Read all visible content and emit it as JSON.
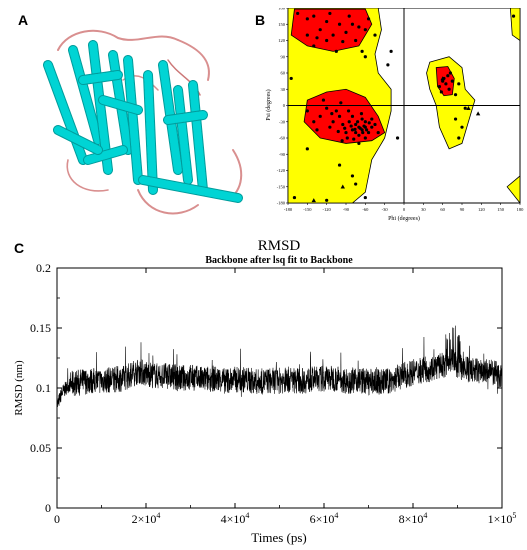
{
  "panels": {
    "a": {
      "letter": "A"
    },
    "b": {
      "letter": "B"
    },
    "c": {
      "letter": "C"
    }
  },
  "colors": {
    "helix": "#00d4d4",
    "helix_dark": "#009c9c",
    "loop": "#d98f8f",
    "favored": "#ff0000",
    "allowed": "#ffff00",
    "points": "#000000"
  },
  "chart_data": [
    {
      "type": "scatter",
      "title": "",
      "xlabel": "Phi (degrees)",
      "ylabel": "Psi (degrees)",
      "xlim": [
        -180,
        180
      ],
      "ylim": [
        -180,
        180
      ],
      "xticks": [
        -180,
        -150,
        -120,
        -90,
        -60,
        -30,
        0,
        30,
        60,
        90,
        120,
        150,
        180
      ],
      "yticks": [
        180,
        150,
        120,
        90,
        60,
        30,
        0,
        -30,
        -60,
        -90,
        -120,
        -150,
        -180
      ],
      "grid": false,
      "points": [
        [
          -140,
          165
        ],
        [
          -120,
          155
        ],
        [
          -100,
          150
        ],
        [
          -80,
          150
        ],
        [
          -70,
          145
        ],
        [
          -90,
          135
        ],
        [
          -110,
          130
        ],
        [
          -130,
          140
        ],
        [
          -150,
          160
        ],
        [
          -60,
          140
        ],
        [
          -75,
          120
        ],
        [
          -95,
          118
        ],
        [
          -120,
          120
        ],
        [
          -140,
          110
        ],
        [
          -65,
          100
        ],
        [
          -150,
          130
        ],
        [
          -105,
          100
        ],
        [
          -85,
          165
        ],
        [
          -55,
          160
        ],
        [
          -45,
          130
        ],
        [
          -115,
          170
        ],
        [
          -135,
          125
        ],
        [
          -70,
          -40
        ],
        [
          -65,
          -45
        ],
        [
          -60,
          -40
        ],
        [
          -75,
          -35
        ],
        [
          -80,
          -45
        ],
        [
          -60,
          -30
        ],
        [
          -55,
          -50
        ],
        [
          -70,
          -55
        ],
        [
          -65,
          -25
        ],
        [
          -85,
          -30
        ],
        [
          -90,
          -50
        ],
        [
          -50,
          -40
        ],
        [
          -75,
          -50
        ],
        [
          -62,
          -38
        ],
        [
          -68,
          -42
        ],
        [
          -72,
          -30
        ],
        [
          -58,
          -45
        ],
        [
          -80,
          -20
        ],
        [
          -95,
          -35
        ],
        [
          -100,
          -20
        ],
        [
          -110,
          -30
        ],
        [
          -105,
          -10
        ],
        [
          -120,
          -5
        ],
        [
          -115,
          -40
        ],
        [
          -130,
          -20
        ],
        [
          -60,
          -60
        ],
        [
          -50,
          -25
        ],
        [
          -45,
          -35
        ],
        [
          -88,
          -60
        ],
        [
          -78,
          -62
        ],
        [
          -66,
          -15
        ],
        [
          -40,
          -50
        ],
        [
          -135,
          -45
        ],
        [
          -125,
          10
        ],
        [
          -98,
          5
        ],
        [
          -70,
          -70
        ],
        [
          -54,
          -32
        ],
        [
          -64,
          -50
        ],
        [
          -76,
          -44
        ],
        [
          -82,
          -38
        ],
        [
          -92,
          -42
        ],
        [
          -102,
          -48
        ],
        [
          -112,
          -15
        ],
        [
          -140,
          -30
        ],
        [
          -150,
          -10
        ],
        [
          -86,
          -10
        ],
        [
          -96,
          -65
        ],
        [
          60,
          45
        ],
        [
          65,
          40
        ],
        [
          55,
          35
        ],
        [
          70,
          30
        ],
        [
          62,
          50
        ],
        [
          75,
          45
        ],
        [
          58,
          25
        ],
        [
          68,
          55
        ],
        [
          80,
          20
        ],
        [
          85,
          40
        ],
        [
          72,
          60
        ],
        [
          95,
          -5
        ],
        [
          80,
          -25
        ],
        [
          85,
          -60
        ],
        [
          90,
          -40
        ],
        [
          -165,
          170
        ],
        [
          -170,
          -170
        ],
        [
          -20,
          100
        ],
        [
          -25,
          75
        ],
        [
          -150,
          -80
        ],
        [
          -100,
          -110
        ],
        [
          -80,
          -130
        ],
        [
          -60,
          -170
        ],
        [
          170,
          165
        ],
        [
          -175,
          50
        ],
        [
          -10,
          -60
        ],
        [
          -75,
          -145
        ],
        [
          -120,
          -175
        ],
        [
          -60,
          90
        ]
      ],
      "triangles": [
        [
          60,
          50
        ],
        [
          100,
          -5
        ],
        [
          115,
          -15
        ],
        [
          -95,
          -150
        ],
        [
          -140,
          -175
        ]
      ]
    },
    {
      "type": "line",
      "title": "RMSD",
      "subtitle": "Backbone after lsq fit to Backbone",
      "xlabel": "Times (ps)",
      "ylabel": "RMSD (nm)",
      "xlim": [
        0,
        100000
      ],
      "ylim": [
        0,
        0.2
      ],
      "xticks": [
        0,
        20000,
        40000,
        60000,
        80000,
        100000
      ],
      "xtick_labels": [
        {
          "base": "0",
          "exp": ""
        },
        {
          "base": "2×10",
          "exp": "4"
        },
        {
          "base": "4×10",
          "exp": "4"
        },
        {
          "base": "6×10",
          "exp": "4"
        },
        {
          "base": "8×10",
          "exp": "4"
        },
        {
          "base": "1×10",
          "exp": "5"
        }
      ],
      "yticks": [
        0,
        0.05,
        0.1,
        0.15,
        0.2
      ],
      "ytick_labels": [
        "0",
        "0.05",
        "0.1",
        "0.15",
        "0.2"
      ],
      "grid": false,
      "series": [
        {
          "name": "",
          "x": [
            0,
            1000,
            2000,
            3000,
            5000,
            7500,
            10000,
            12500,
            15000,
            17500,
            18500,
            20000,
            22500,
            25000,
            27500,
            30000,
            32500,
            35000,
            37500,
            40000,
            42500,
            45000,
            47500,
            50000,
            52500,
            55000,
            57500,
            60000,
            62500,
            65000,
            67500,
            70000,
            72500,
            75000,
            77500,
            80000,
            82500,
            85000,
            87500,
            89000,
            90000,
            92500,
            95000,
            97500,
            100000
          ],
          "values": [
            0.085,
            0.095,
            0.1,
            0.103,
            0.105,
            0.106,
            0.106,
            0.107,
            0.108,
            0.113,
            0.114,
            0.112,
            0.11,
            0.11,
            0.108,
            0.109,
            0.107,
            0.108,
            0.106,
            0.107,
            0.107,
            0.105,
            0.106,
            0.106,
            0.107,
            0.106,
            0.107,
            0.108,
            0.108,
            0.106,
            0.107,
            0.105,
            0.105,
            0.106,
            0.11,
            0.113,
            0.115,
            0.117,
            0.12,
            0.126,
            0.118,
            0.115,
            0.114,
            0.113,
            0.11
          ]
        }
      ]
    }
  ]
}
